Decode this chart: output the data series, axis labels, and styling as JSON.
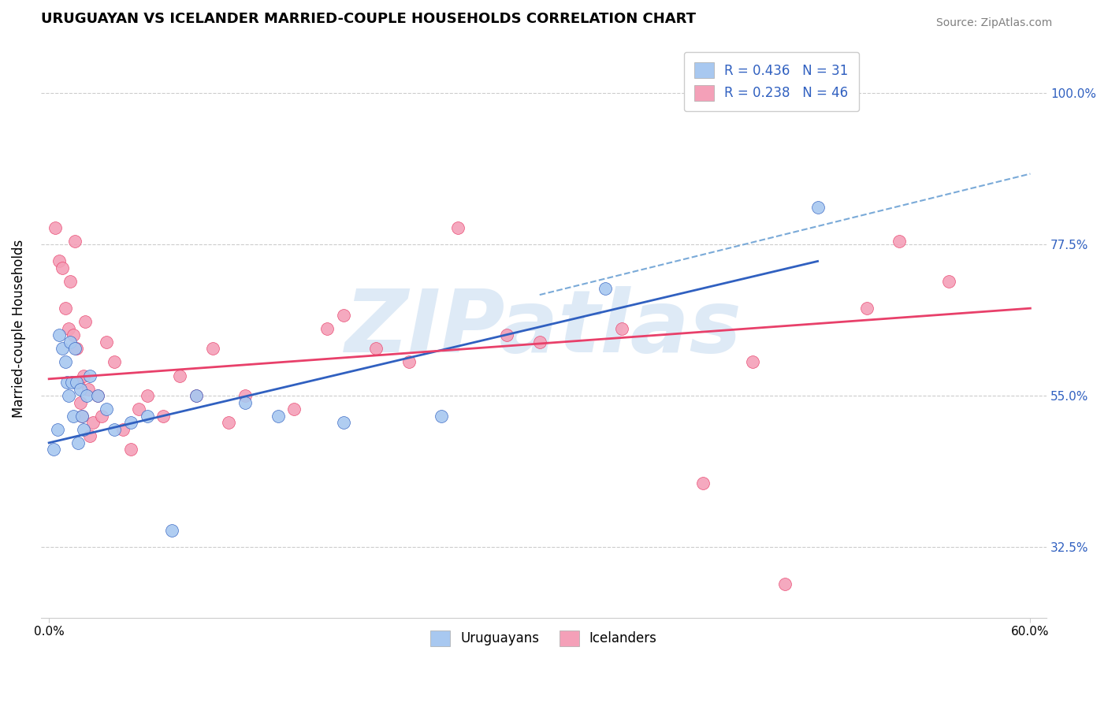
{
  "title": "URUGUAYAN VS ICELANDER MARRIED-COUPLE HOUSEHOLDS CORRELATION CHART",
  "source": "Source: ZipAtlas.com",
  "ylabel": "Married-couple Households",
  "yticks": [
    32.5,
    55.0,
    77.5,
    100.0
  ],
  "ytick_labels": [
    "32.5%",
    "55.0%",
    "77.5%",
    "100.0%"
  ],
  "xmin": 0.0,
  "xmax": 60.0,
  "ymin": 22.0,
  "ymax": 108.0,
  "uruguayan_R": 0.436,
  "uruguayan_N": 31,
  "icelander_R": 0.238,
  "icelander_N": 46,
  "uruguayan_color": "#A8C8F0",
  "icelander_color": "#F4A0B8",
  "uruguayan_line_color": "#3060C0",
  "icelander_line_color": "#E8406A",
  "dashed_line_color": "#7AAAD8",
  "grid_color": "#CCCCCC",
  "watermark_color": "#C8DCF0",
  "watermark": "ZIPatlas",
  "legend_label_uruguayan": "Uruguayans",
  "legend_label_icelander": "Icelanders",
  "uruguayan_x": [
    0.3,
    0.5,
    0.6,
    0.8,
    1.0,
    1.1,
    1.2,
    1.3,
    1.4,
    1.5,
    1.6,
    1.7,
    1.8,
    1.9,
    2.0,
    2.1,
    2.3,
    2.5,
    3.0,
    3.5,
    4.0,
    5.0,
    6.0,
    7.5,
    9.0,
    12.0,
    14.0,
    18.0,
    24.0,
    34.0,
    47.0
  ],
  "uruguayan_y": [
    47.0,
    50.0,
    64.0,
    62.0,
    60.0,
    57.0,
    55.0,
    63.0,
    57.0,
    52.0,
    62.0,
    57.0,
    48.0,
    56.0,
    52.0,
    50.0,
    55.0,
    58.0,
    55.0,
    53.0,
    50.0,
    51.0,
    52.0,
    35.0,
    55.0,
    54.0,
    52.0,
    51.0,
    52.0,
    71.0,
    83.0
  ],
  "icelander_x": [
    0.4,
    0.6,
    0.8,
    1.0,
    1.2,
    1.3,
    1.5,
    1.6,
    1.7,
    1.8,
    1.9,
    2.0,
    2.1,
    2.2,
    2.4,
    2.5,
    2.7,
    3.0,
    3.2,
    3.5,
    4.0,
    4.5,
    5.0,
    5.5,
    6.0,
    7.0,
    8.0,
    9.0,
    10.0,
    11.0,
    12.0,
    15.0,
    17.0,
    18.0,
    20.0,
    22.0,
    25.0,
    28.0,
    30.0,
    35.0,
    40.0,
    43.0,
    45.0,
    50.0,
    52.0,
    55.0
  ],
  "icelander_y": [
    80.0,
    75.0,
    74.0,
    68.0,
    65.0,
    72.0,
    64.0,
    78.0,
    62.0,
    57.0,
    54.0,
    52.0,
    58.0,
    66.0,
    56.0,
    49.0,
    51.0,
    55.0,
    52.0,
    63.0,
    60.0,
    50.0,
    47.0,
    53.0,
    55.0,
    52.0,
    58.0,
    55.0,
    62.0,
    51.0,
    55.0,
    53.0,
    65.0,
    67.0,
    62.0,
    60.0,
    80.0,
    64.0,
    63.0,
    65.0,
    42.0,
    60.0,
    27.0,
    68.0,
    78.0,
    72.0
  ],
  "uru_trend_x0": 0.0,
  "uru_trend_y0": 48.0,
  "uru_trend_x1": 47.0,
  "uru_trend_y1": 75.0,
  "ice_trend_x0": 0.0,
  "ice_trend_y0": 57.5,
  "ice_trend_x1": 60.0,
  "ice_trend_y1": 68.0,
  "dash_x0": 30.0,
  "dash_y0": 70.0,
  "dash_x1": 60.0,
  "dash_y1": 88.0
}
